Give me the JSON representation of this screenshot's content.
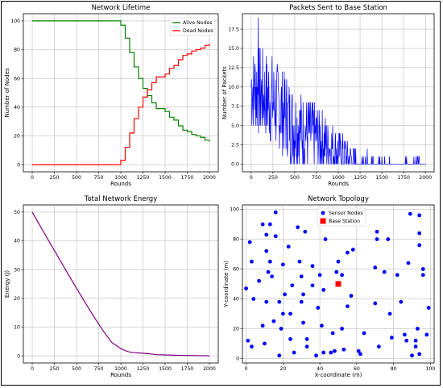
{
  "chart_data": [
    {
      "type": "line",
      "title": "Network Lifetime",
      "xlabel": "Rounds",
      "ylabel": "Number of Nodes",
      "xlim": [
        -100,
        2100
      ],
      "ylim": [
        -5,
        105
      ],
      "xticks": [
        0,
        250,
        500,
        750,
        1000,
        1250,
        1500,
        1750,
        2000
      ],
      "yticks": [
        0,
        20,
        40,
        60,
        80,
        100
      ],
      "grid": true,
      "legend": "top-right",
      "series": [
        {
          "name": "Alive Nodes",
          "color": "#008000",
          "x": [
            0,
            950,
            1000,
            1050,
            1100,
            1150,
            1200,
            1250,
            1300,
            1350,
            1400,
            1450,
            1500,
            1550,
            1600,
            1650,
            1700,
            1750,
            1800,
            1850,
            1900,
            1950,
            2000
          ],
          "y": [
            100,
            100,
            97,
            88,
            78,
            68,
            60,
            53,
            48,
            43,
            39,
            39,
            37,
            33,
            31,
            27,
            24,
            23,
            21,
            20,
            19,
            17,
            16
          ]
        },
        {
          "name": "Dead Nodes",
          "color": "#ff0000",
          "x": [
            0,
            950,
            1000,
            1050,
            1100,
            1150,
            1200,
            1250,
            1300,
            1350,
            1400,
            1450,
            1500,
            1550,
            1600,
            1650,
            1700,
            1750,
            1800,
            1850,
            1900,
            1950,
            2000
          ],
          "y": [
            0,
            0,
            3,
            12,
            22,
            32,
            40,
            47,
            52,
            57,
            61,
            61,
            63,
            67,
            69,
            73,
            76,
            77,
            79,
            80,
            81,
            83,
            84
          ]
        }
      ]
    },
    {
      "type": "line",
      "title": "Packets Sent to Base Station",
      "xlabel": "Rounds",
      "ylabel": "Number of Packets",
      "xlim": [
        -100,
        2100
      ],
      "ylim": [
        -1,
        19.5
      ],
      "xticks": [
        0,
        250,
        500,
        750,
        1000,
        1250,
        1500,
        1750,
        2000
      ],
      "yticks": [
        0.0,
        2.5,
        5.0,
        7.5,
        10.0,
        12.5,
        15.0,
        17.5
      ],
      "ytick_labels": [
        "0.0",
        "2.5",
        "5.0",
        "7.5",
        "10.0",
        "12.5",
        "15.0",
        "17.5"
      ],
      "grid": true,
      "series": [
        {
          "color": "#0000ff",
          "trend": [
            {
              "x": 0,
              "mean": 10.0,
              "spread": 6.0
            },
            {
              "x": 250,
              "mean": 8.0,
              "spread": 6.0
            },
            {
              "x": 500,
              "mean": 5.0,
              "spread": 5.5
            },
            {
              "x": 750,
              "mean": 3.5,
              "spread": 4.5
            },
            {
              "x": 1000,
              "mean": 1.5,
              "spread": 3.0
            },
            {
              "x": 1250,
              "mean": 0.3,
              "spread": 1.5
            },
            {
              "x": 1500,
              "mean": 0.2,
              "spread": 1.2
            },
            {
              "x": 2000,
              "mean": 0.1,
              "spread": 1.0
            }
          ],
          "peak": {
            "x": 80,
            "y": 19
          }
        }
      ]
    },
    {
      "type": "line",
      "title": "Total Network Energy",
      "xlabel": "Rounds",
      "ylabel": "Energy (J)",
      "xlim": [
        -100,
        2100
      ],
      "ylim": [
        -2.5,
        52.5
      ],
      "xticks": [
        0,
        250,
        500,
        750,
        1000,
        1250,
        1500,
        1750,
        2000
      ],
      "yticks": [
        0,
        10,
        20,
        30,
        40,
        50
      ],
      "grid": true,
      "series": [
        {
          "color": "#800080",
          "x": [
            0,
            100,
            200,
            300,
            400,
            500,
            600,
            700,
            800,
            900,
            1000,
            1050,
            1100,
            1150,
            1200,
            1250,
            1300,
            1350,
            1400,
            1500,
            1600,
            1700,
            1800,
            1900,
            2000
          ],
          "y": [
            50,
            44.6,
            39.3,
            34.0,
            28.7,
            23.5,
            18.4,
            13.4,
            8.7,
            4.6,
            2.5,
            1.8,
            1.3,
            1.1,
            1.0,
            0.9,
            0.8,
            0.6,
            0.4,
            0.3,
            0.2,
            0.15,
            0.1,
            0.05,
            0.0
          ]
        }
      ]
    },
    {
      "type": "scatter",
      "title": "Network Topology",
      "xlabel": "X-coordinate (m)",
      "ylabel": "Y-coordinate (m)",
      "xlim": [
        -2,
        102
      ],
      "ylim": [
        -3,
        103
      ],
      "xticks": [
        0,
        20,
        40,
        60,
        80,
        100
      ],
      "yticks": [
        0,
        20,
        40,
        60,
        80,
        100
      ],
      "grid": true,
      "legend": "top-center",
      "series": [
        {
          "name": "Sensor Nodes",
          "color": "#0000ff",
          "points": [
            [
              0,
              47
            ],
            [
              1,
              12
            ],
            [
              2,
              78
            ],
            [
              3,
              8
            ],
            [
              3,
              65
            ],
            [
              4,
              40
            ],
            [
              7,
              52
            ],
            [
              9,
              90
            ],
            [
              9,
              22
            ],
            [
              10,
              10
            ],
            [
              11,
              38
            ],
            [
              11,
              83
            ],
            [
              11,
              72
            ],
            [
              12,
              58
            ],
            [
              13,
              90
            ],
            [
              13,
              65
            ],
            [
              14,
              55
            ],
            [
              15,
              25
            ],
            [
              16,
              98
            ],
            [
              16,
              82
            ],
            [
              18,
              2
            ],
            [
              18,
              38
            ],
            [
              19,
              20
            ],
            [
              20,
              30
            ],
            [
              20,
              63
            ],
            [
              21,
              43
            ],
            [
              23,
              75
            ],
            [
              24,
              13
            ],
            [
              24,
              30
            ],
            [
              25,
              49
            ],
            [
              26,
              4
            ],
            [
              28,
              88
            ],
            [
              29,
              65
            ],
            [
              30,
              55
            ],
            [
              30,
              38
            ],
            [
              31,
              24
            ],
            [
              31,
              43
            ],
            [
              32,
              85
            ],
            [
              33,
              13
            ],
            [
              33,
              8
            ],
            [
              36,
              62
            ],
            [
              36,
              49
            ],
            [
              38,
              2
            ],
            [
              39,
              34
            ],
            [
              40,
              56
            ],
            [
              41,
              22
            ],
            [
              42,
              4
            ],
            [
              42,
              46
            ],
            [
              43,
              80
            ],
            [
              46,
              4
            ],
            [
              47,
              17
            ],
            [
              48,
              5
            ],
            [
              49,
              58
            ],
            [
              50,
              65
            ],
            [
              52,
              56
            ],
            [
              52,
              20
            ],
            [
              53,
              6
            ],
            [
              55,
              35
            ],
            [
              55,
              71
            ],
            [
              57,
              42
            ],
            [
              58,
              73
            ],
            [
              61,
              5
            ],
            [
              62,
              3
            ],
            [
              64,
              17
            ],
            [
              70,
              61
            ],
            [
              70,
              37
            ],
            [
              71,
              80
            ],
            [
              71,
              85
            ],
            [
              72,
              8
            ],
            [
              75,
              58
            ],
            [
              77,
              80
            ],
            [
              78,
              30
            ],
            [
              79,
              14
            ],
            [
              82,
              56
            ],
            [
              84,
              38
            ],
            [
              86,
              16
            ],
            [
              87,
              12
            ],
            [
              88,
              64
            ],
            [
              89,
              97
            ],
            [
              90,
              2
            ],
            [
              92,
              8
            ],
            [
              92,
              12
            ],
            [
              93,
              20
            ],
            [
              94,
              96
            ],
            [
              94,
              84
            ],
            [
              94,
              76
            ],
            [
              94,
              3
            ],
            [
              96,
              60
            ],
            [
              96,
              56
            ],
            [
              98,
              16
            ],
            [
              99,
              34
            ]
          ]
        },
        {
          "name": "Base Station",
          "color": "#ff0000",
          "marker": "square",
          "points": [
            [
              50,
              50
            ]
          ]
        }
      ]
    }
  ]
}
